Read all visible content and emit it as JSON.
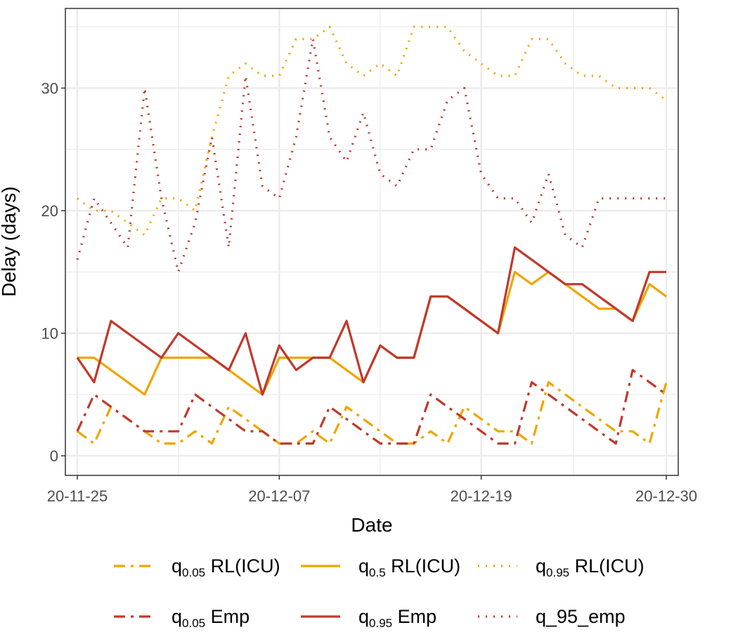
{
  "chart_data": {
    "type": "line",
    "xlabel": "Date",
    "ylabel": "Delay (days)",
    "x_start": "2020-11-25",
    "x_end": "2020-12-30",
    "xticks": [
      {
        "date": "2020-11-25",
        "label": "20-11-25"
      },
      {
        "date": "2020-12-07",
        "label": "20-12-07"
      },
      {
        "date": "2020-12-19",
        "label": "20-12-19"
      },
      {
        "date": "2020-12-30",
        "label": "20-12-30"
      }
    ],
    "yticks": [
      0,
      10,
      20,
      30
    ],
    "ylim": [
      -1.6,
      36.5
    ],
    "grid": true,
    "legend_position": "bottom",
    "x": [
      "2020-11-25",
      "2020-11-26",
      "2020-11-27",
      "2020-11-28",
      "2020-11-29",
      "2020-11-30",
      "2020-12-01",
      "2020-12-02",
      "2020-12-03",
      "2020-12-04",
      "2020-12-05",
      "2020-12-06",
      "2020-12-07",
      "2020-12-08",
      "2020-12-09",
      "2020-12-10",
      "2020-12-11",
      "2020-12-12",
      "2020-12-13",
      "2020-12-14",
      "2020-12-15",
      "2020-12-16",
      "2020-12-17",
      "2020-12-18",
      "2020-12-19",
      "2020-12-20",
      "2020-12-21",
      "2020-12-22",
      "2020-12-23",
      "2020-12-24",
      "2020-12-25",
      "2020-12-26",
      "2020-12-27",
      "2020-12-28",
      "2020-12-29",
      "2020-12-30"
    ],
    "series": [
      {
        "name": "q_0.05 RL(ICU)",
        "legend_main": "q",
        "legend_sub": "0.05",
        "legend_rest": " RL(ICU)",
        "color": "#f0a500",
        "dash": "16,8,4,8",
        "values": [
          2,
          1,
          4,
          3,
          2,
          1,
          1,
          2,
          1,
          4,
          3,
          2,
          1,
          1,
          2,
          1,
          4,
          3,
          2,
          1,
          1,
          2,
          1,
          4,
          3,
          2,
          2,
          1,
          6,
          5,
          4,
          3,
          2,
          2,
          1,
          6
        ]
      },
      {
        "name": "q_0.5 RL(ICU)",
        "legend_main": "q",
        "legend_sub": "0.5",
        "legend_rest": " RL(ICU)",
        "color": "#f0a500",
        "dash": "",
        "values": [
          8,
          8,
          7,
          6,
          5,
          8,
          8,
          8,
          8,
          7,
          6,
          5,
          8,
          8,
          8,
          8,
          7,
          6,
          9,
          8,
          8,
          13,
          13,
          12,
          11,
          10,
          15,
          14,
          15,
          14,
          13,
          12,
          12,
          11,
          14,
          13
        ]
      },
      {
        "name": "q_0.95 RL(ICU)",
        "legend_main": "q",
        "legend_sub": "0.95",
        "legend_rest": " RL(ICU)",
        "color": "#f0a500",
        "dash": "2,9",
        "values": [
          21,
          20,
          20,
          19,
          18,
          21,
          21,
          20,
          26,
          31,
          32,
          31,
          31,
          34,
          34,
          35,
          32,
          31,
          32,
          31,
          35,
          35,
          35,
          33,
          32,
          31,
          31,
          34,
          34,
          32,
          31,
          31,
          30,
          30,
          30,
          29
        ]
      },
      {
        "name": "q_0.05 Emp",
        "legend_main": "q",
        "legend_sub": "0.05",
        "legend_rest": " Emp",
        "color": "#c0392b",
        "dash": "16,8,4,8",
        "values": [
          2,
          5,
          4,
          3,
          2,
          2,
          2,
          5,
          4,
          3,
          2,
          2,
          1,
          1,
          1,
          4,
          3,
          2,
          1,
          1,
          1,
          5,
          4,
          3,
          2,
          1,
          1,
          6,
          5,
          4,
          3,
          2,
          1,
          7,
          6,
          5
        ]
      },
      {
        "name": "q_0.95 Emp",
        "legend_main": "q",
        "legend_sub": "0.95",
        "legend_rest": " Emp",
        "color": "#c0392b",
        "dash": "",
        "values": [
          8,
          6,
          11,
          10,
          9,
          8,
          10,
          9,
          8,
          7,
          10,
          5,
          9,
          7,
          8,
          8,
          11,
          6,
          9,
          8,
          8,
          13,
          13,
          12,
          11,
          10,
          17,
          16,
          15,
          14,
          14,
          13,
          12,
          11,
          15,
          15
        ]
      },
      {
        "name": "q_95_emp",
        "legend_main": "q_95_emp",
        "legend_sub": "",
        "legend_rest": "",
        "color": "#c0392b",
        "dash": "2,9",
        "values": [
          16,
          21,
          19,
          17,
          30,
          21,
          15,
          19,
          26,
          17,
          31,
          22,
          21,
          26,
          34,
          26,
          24,
          28,
          23,
          22,
          25,
          25,
          29,
          30,
          23,
          21,
          21,
          19,
          23,
          18,
          17,
          21,
          21,
          21,
          21,
          21
        ]
      }
    ]
  }
}
